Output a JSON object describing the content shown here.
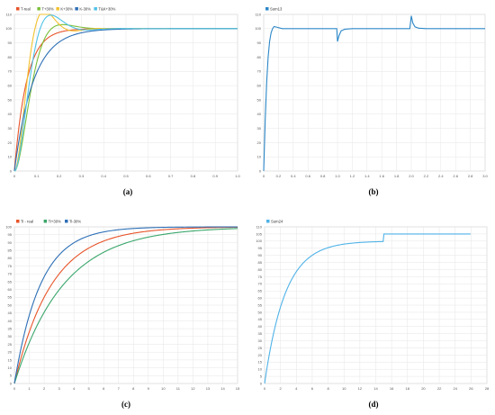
{
  "captions": [
    "(a)",
    "(b)",
    "(c)",
    "(d)"
  ],
  "chart_data": [
    {
      "type": "line",
      "legend": "top-left",
      "grid": true,
      "xlim": [
        0,
        1.0
      ],
      "ylim": [
        0,
        110
      ],
      "xticks": [
        "0",
        "0.1",
        "0.2",
        "0.3",
        "0.4",
        "0.5",
        "0.6",
        "0.7",
        "0.8",
        "0.9",
        "1.0"
      ],
      "yticks": [
        "0",
        "10",
        "20",
        "30",
        "40",
        "50",
        "60",
        "70",
        "80",
        "90",
        "100",
        "110"
      ],
      "series": [
        {
          "name": "T-real",
          "color": "#e8542a",
          "model": {
            "kind": "first",
            "tau": 0.055,
            "final": 100
          }
        },
        {
          "name": "T+30%",
          "color": "#7bbf3a",
          "model": {
            "kind": "second",
            "wn": 22,
            "zeta": 0.75,
            "final": 100
          }
        },
        {
          "name": "K+30%",
          "color": "#f2c12e",
          "model": {
            "kind": "second",
            "wn": 28,
            "zeta": 0.55,
            "final": 100
          }
        },
        {
          "name": "K-30%",
          "color": "#2d6fb6",
          "model": {
            "kind": "first",
            "tau": 0.085,
            "final": 100
          }
        },
        {
          "name": "T&K+30%",
          "color": "#4fc2e8",
          "model": {
            "kind": "second",
            "wn": 24,
            "zeta": 0.6,
            "final": 100
          }
        }
      ]
    },
    {
      "type": "line",
      "legend": "top-left",
      "grid": true,
      "xlim": [
        0,
        3.0
      ],
      "ylim": [
        0,
        110
      ],
      "xticks": [
        "0",
        "0.2",
        "0.4",
        "0.6",
        "0.8",
        "1.0",
        "1.2",
        "1.4",
        "1.6",
        "1.8",
        "2.0",
        "2.2",
        "2.4",
        "2.6",
        "2.8",
        "3.0"
      ],
      "yticks": [
        "0",
        "10",
        "20",
        "30",
        "40",
        "50",
        "60",
        "70",
        "80",
        "90",
        "100",
        "110"
      ],
      "series": [
        {
          "name": "Sum13",
          "color": "#2b87c8",
          "points": [
            [
              0,
              0
            ],
            [
              0.02,
              35
            ],
            [
              0.04,
              62
            ],
            [
              0.06,
              80
            ],
            [
              0.08,
              91
            ],
            [
              0.1,
              97
            ],
            [
              0.12,
              100
            ],
            [
              0.14,
              101.5
            ],
            [
              0.18,
              101
            ],
            [
              0.25,
              100
            ],
            [
              0.99,
              100
            ],
            [
              1.0,
              91
            ],
            [
              1.02,
              95
            ],
            [
              1.05,
              98.5
            ],
            [
              1.1,
              99.6
            ],
            [
              1.2,
              100
            ],
            [
              1.98,
              100
            ],
            [
              2.0,
              109
            ],
            [
              2.02,
              104
            ],
            [
              2.05,
              101.3
            ],
            [
              2.1,
              100.3
            ],
            [
              2.2,
              100
            ],
            [
              3.0,
              100
            ]
          ]
        }
      ]
    },
    {
      "type": "line",
      "legend": "top-left",
      "grid": true,
      "xlim": [
        0,
        15
      ],
      "ylim": [
        0,
        100
      ],
      "xticks": [
        "0",
        "1",
        "2",
        "3",
        "4",
        "5",
        "6",
        "7",
        "8",
        "9",
        "10",
        "11",
        "12",
        "13",
        "14",
        "15"
      ],
      "yticks": [
        "0",
        "5",
        "10",
        "15",
        "20",
        "25",
        "30",
        "35",
        "40",
        "45",
        "50",
        "55",
        "60",
        "65",
        "70",
        "75",
        "80",
        "85",
        "90",
        "95",
        "100"
      ],
      "series": [
        {
          "name": "Ti - real",
          "color": "#e8542a",
          "model": {
            "kind": "first",
            "tau": 2.5,
            "final": 100
          }
        },
        {
          "name": "Ti+30%",
          "color": "#3aa66b",
          "model": {
            "kind": "first",
            "tau": 3.3,
            "final": 100
          }
        },
        {
          "name": "Ti-30%",
          "color": "#2d6fb6",
          "model": {
            "kind": "first",
            "tau": 1.75,
            "final": 100
          }
        }
      ]
    },
    {
      "type": "line",
      "legend": "top-left",
      "grid": true,
      "xlim": [
        0,
        28
      ],
      "ylim": [
        0,
        110
      ],
      "xticks": [
        "0",
        "2",
        "4",
        "6",
        "8",
        "10",
        "12",
        "14",
        "16",
        "18",
        "20",
        "22",
        "24",
        "26",
        "28"
      ],
      "yticks": [
        "0",
        "5",
        "10",
        "15",
        "20",
        "25",
        "30",
        "35",
        "40",
        "45",
        "50",
        "55",
        "60",
        "65",
        "70",
        "75",
        "80",
        "85",
        "90",
        "95",
        "100",
        "105",
        "110"
      ],
      "series": [
        {
          "name": "Sum24",
          "color": "#4fb2e8",
          "model": {
            "kind": "firststep",
            "tau": 2.6,
            "final": 100,
            "t_step": 15,
            "step_to": 105,
            "t_end": 26
          }
        }
      ]
    }
  ]
}
